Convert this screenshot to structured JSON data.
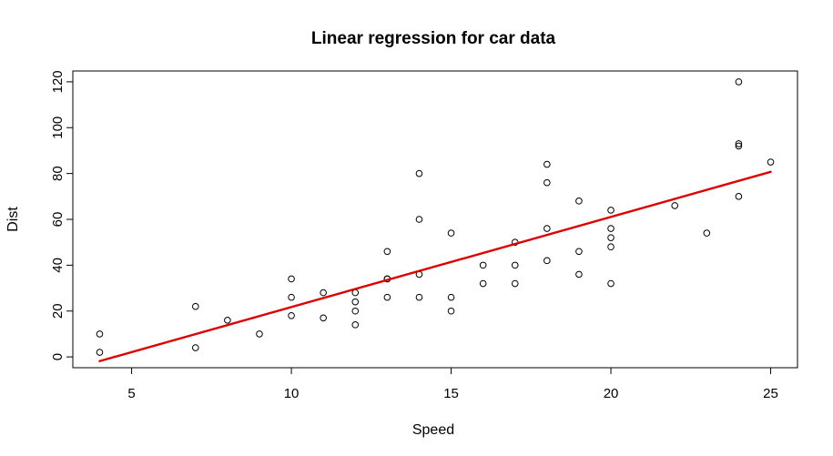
{
  "chart_data": {
    "type": "scatter",
    "title": "Linear regression for car data",
    "xlabel": "Speed",
    "ylabel": "Dist",
    "xlim": [
      3.16,
      25.84
    ],
    "ylim": [
      -4.72,
      124.72
    ],
    "x_ticks": [
      5,
      10,
      15,
      20,
      25
    ],
    "x_tick_labels": [
      "5",
      "10",
      "15",
      "20",
      "25"
    ],
    "y_ticks": [
      0,
      20,
      40,
      60,
      80,
      100,
      120
    ],
    "y_tick_labels": [
      "0",
      "20",
      "40",
      "60",
      "80",
      "100",
      "120"
    ],
    "grid": false,
    "legend": "none",
    "point_color": "#000000",
    "line_color": "#dd0000",
    "points": [
      [
        4,
        2
      ],
      [
        4,
        10
      ],
      [
        7,
        4
      ],
      [
        7,
        22
      ],
      [
        8,
        16
      ],
      [
        9,
        10
      ],
      [
        10,
        18
      ],
      [
        10,
        26
      ],
      [
        10,
        34
      ],
      [
        11,
        17
      ],
      [
        11,
        28
      ],
      [
        12,
        14
      ],
      [
        12,
        20
      ],
      [
        12,
        24
      ],
      [
        12,
        28
      ],
      [
        13,
        26
      ],
      [
        13,
        34
      ],
      [
        13,
        34
      ],
      [
        13,
        46
      ],
      [
        14,
        26
      ],
      [
        14,
        36
      ],
      [
        14,
        60
      ],
      [
        14,
        80
      ],
      [
        15,
        20
      ],
      [
        15,
        26
      ],
      [
        15,
        54
      ],
      [
        16,
        32
      ],
      [
        16,
        40
      ],
      [
        17,
        32
      ],
      [
        17,
        40
      ],
      [
        17,
        50
      ],
      [
        18,
        42
      ],
      [
        18,
        56
      ],
      [
        18,
        76
      ],
      [
        18,
        84
      ],
      [
        19,
        36
      ],
      [
        19,
        46
      ],
      [
        19,
        68
      ],
      [
        20,
        32
      ],
      [
        20,
        48
      ],
      [
        20,
        52
      ],
      [
        20,
        56
      ],
      [
        20,
        64
      ],
      [
        22,
        66
      ],
      [
        23,
        54
      ],
      [
        24,
        70
      ],
      [
        24,
        92
      ],
      [
        24,
        93
      ],
      [
        24,
        120
      ],
      [
        25,
        85
      ]
    ],
    "regression_line": {
      "label": "",
      "intercept": -17.579,
      "slope": 3.932,
      "x_range": [
        4,
        25
      ]
    }
  }
}
